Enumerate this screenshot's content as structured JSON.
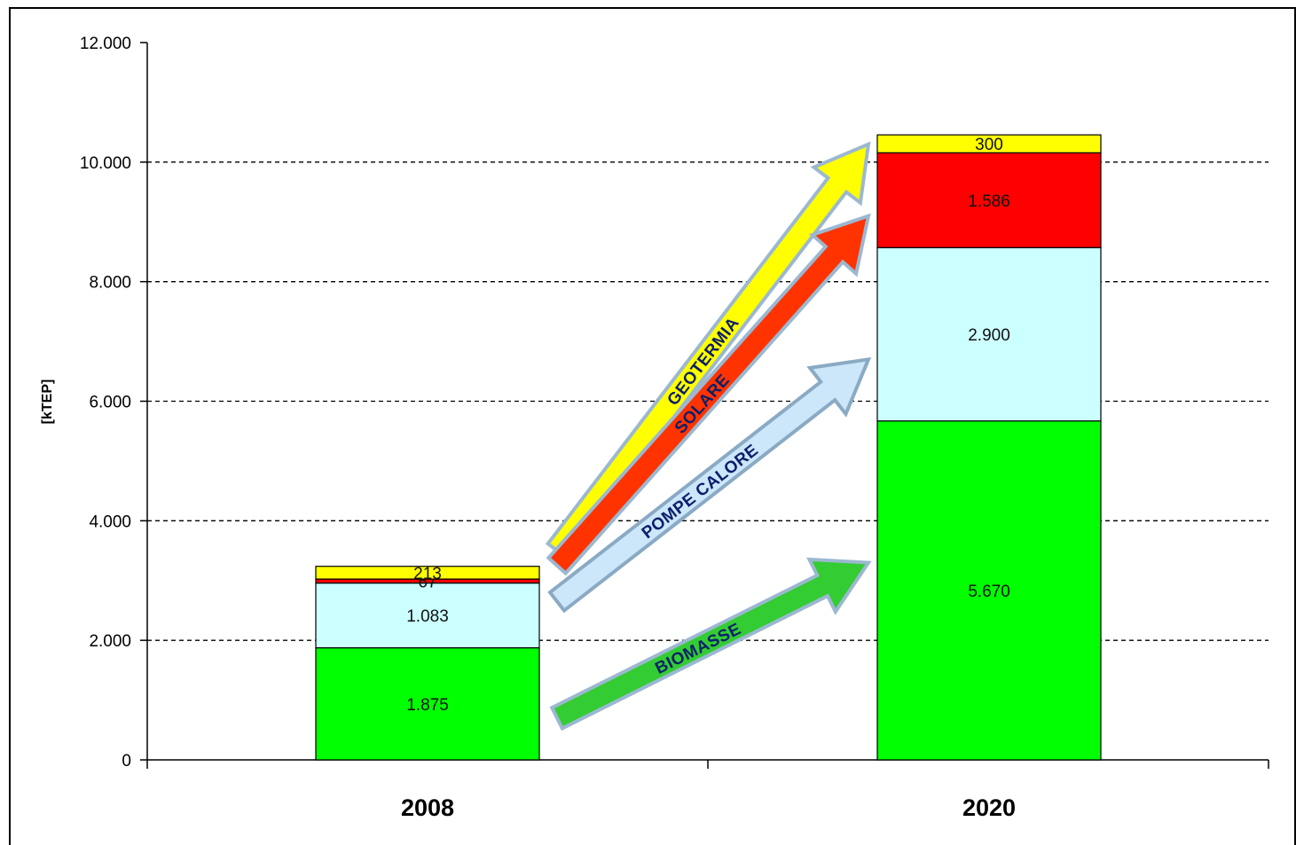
{
  "chart_data": {
    "type": "bar",
    "stacked": true,
    "categories": [
      "2008",
      "2020"
    ],
    "ylabel": "[kTEP]",
    "ylim": [
      0,
      12000
    ],
    "yticks": [
      {
        "value": 0,
        "label": "0"
      },
      {
        "value": 2000,
        "label": "2.000"
      },
      {
        "value": 4000,
        "label": "4.000"
      },
      {
        "value": 6000,
        "label": "6.000"
      },
      {
        "value": 8000,
        "label": "8.000"
      },
      {
        "value": 10000,
        "label": "10.000"
      },
      {
        "value": 12000,
        "label": "12.000"
      }
    ],
    "grid": "horizontal-dashed",
    "series": [
      {
        "color": "#00ff00",
        "values": [
          1875,
          5670
        ],
        "labels": [
          "1.875",
          "5.670"
        ]
      },
      {
        "color": "#ccffff",
        "values": [
          1083,
          2900
        ],
        "labels": [
          "1.083",
          "2.900"
        ]
      },
      {
        "color": "#ff0000",
        "values": [
          67,
          1586
        ],
        "labels": [
          "67",
          "1.586"
        ]
      },
      {
        "color": "#ffff00",
        "values": [
          213,
          300
        ],
        "labels": [
          "213",
          "300"
        ]
      }
    ],
    "annotations": [
      {
        "text": "GEOTERMIA",
        "color": "#ffff00",
        "stroke": "#9cb8d0",
        "from": {
          "category": "2008",
          "value": 3500
        },
        "to": {
          "category": "2020",
          "value": 10300
        }
      },
      {
        "text": "SOLARE",
        "color": "#ff3300",
        "stroke": "#9cb8d0",
        "from": {
          "category": "2008",
          "value": 3250
        },
        "to": {
          "category": "2020",
          "value": 9100
        }
      },
      {
        "text": "POMPE CALORE",
        "color": "#cce6fa",
        "stroke": "#8aaac4",
        "from": {
          "category": "2008",
          "value": 2650
        },
        "to": {
          "category": "2020",
          "value": 6700
        }
      },
      {
        "text": "BIOMASSE",
        "color": "#33cc33",
        "stroke": "#9cb8d0",
        "from": {
          "category": "2008",
          "value": 700
        },
        "to": {
          "category": "2020",
          "value": 3300
        }
      }
    ]
  }
}
